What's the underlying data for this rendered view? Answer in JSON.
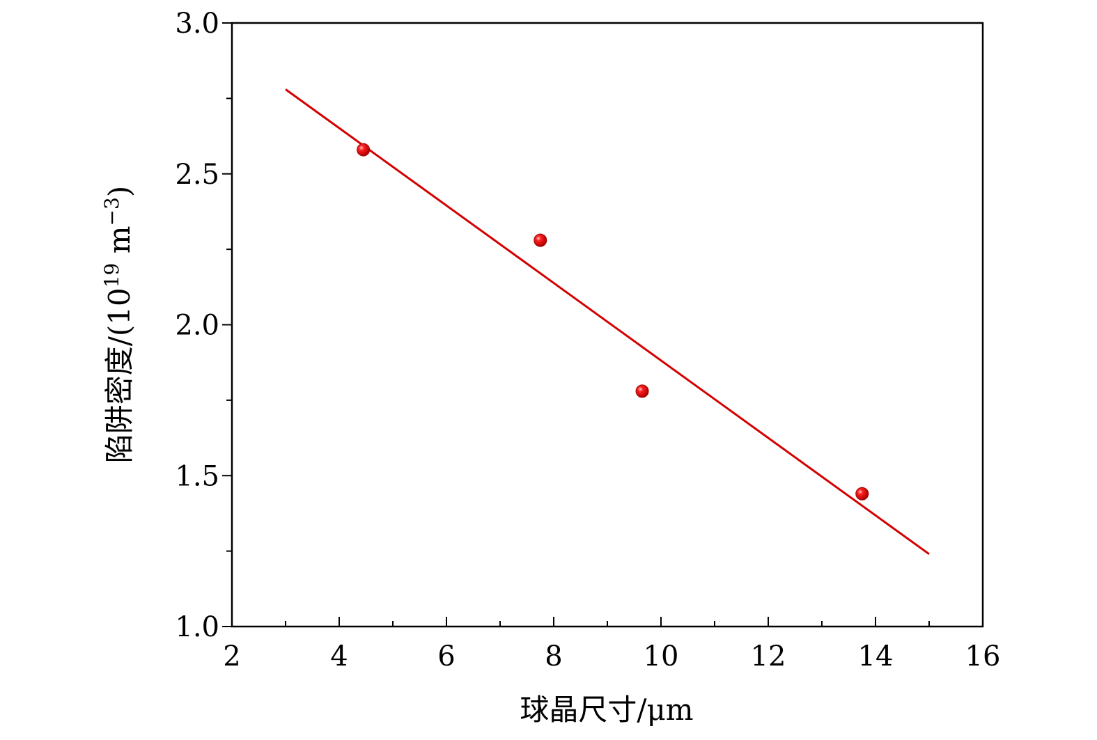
{
  "chart_data": {
    "type": "scatter",
    "title": "",
    "xlabel": "球晶尺寸/μm",
    "ylabel": "陷阱密度/(10",
    "ylabel_exp": "19",
    "ylabel_unit": " m",
    "ylabel_unit_exp": "−3",
    "ylabel_close": ")",
    "xlim": [
      2,
      16
    ],
    "ylim": [
      1.0,
      3.0
    ],
    "x_major_ticks": [
      2,
      4,
      6,
      8,
      10,
      12,
      14,
      16
    ],
    "x_tick_labels": [
      "2",
      "4",
      "6",
      "8",
      "10",
      "12",
      "14",
      "16"
    ],
    "y_major_ticks": [
      1.0,
      1.5,
      2.0,
      2.5,
      3.0
    ],
    "y_tick_labels": [
      "1.0",
      "1.5",
      "2.0",
      "2.5",
      "3.0"
    ],
    "x_minor_step": 1,
    "y_minor_step": 0.25,
    "grid": false,
    "marker_color": "#e8000b",
    "line_color": "#d40000",
    "series": [
      {
        "kind": "points",
        "x": [
          4.45,
          7.75,
          9.65,
          13.75
        ],
        "y": [
          2.58,
          2.28,
          1.78,
          1.44
        ]
      },
      {
        "kind": "fit-line",
        "x": [
          3.0,
          15.0
        ],
        "y": [
          2.78,
          1.24
        ]
      }
    ]
  }
}
